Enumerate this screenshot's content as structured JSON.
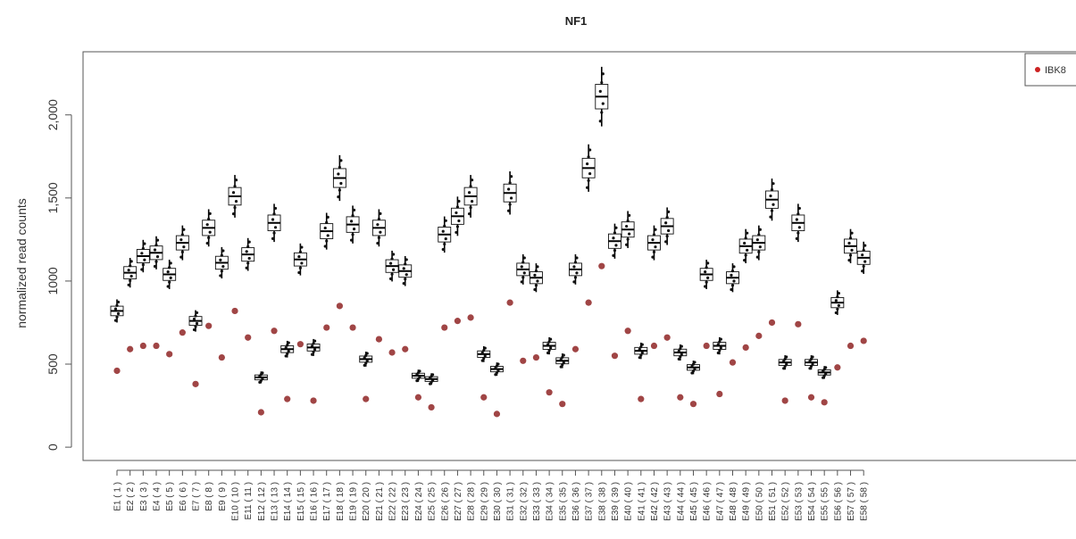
{
  "chart_data": {
    "type": "box",
    "title": "NF1",
    "xlabel": "",
    "ylabel": "normalized read counts",
    "ylim": [
      -80,
      2380
    ],
    "yticks": [
      0,
      500,
      1000,
      1500,
      2000
    ],
    "ytick_labels": [
      "0",
      "500",
      "1000",
      "1,500",
      "2,000"
    ],
    "legend": {
      "placement": "top-right",
      "entries": [
        {
          "label": "IBK8",
          "color": "#a04545"
        }
      ]
    },
    "colors": {
      "box": "#000000",
      "sample_point": "#a04545"
    },
    "categories": [
      "E1 ( 1 )",
      "E2 ( 2 )",
      "E3 ( 3 )",
      "E4 ( 4 )",
      "E5 ( 5 )",
      "E6 ( 6 )",
      "E7 ( 7 )",
      "E8 ( 8 )",
      "E9 ( 9 )",
      "E10 ( 10 )",
      "E11 ( 11 )",
      "E12 ( 12 )",
      "E13 ( 13 )",
      "E14 ( 14 )",
      "E15 ( 15 )",
      "E16 ( 16 )",
      "E17 ( 17 )",
      "E18 ( 18 )",
      "E19 ( 19 )",
      "E20 ( 20 )",
      "E21 ( 21 )",
      "E22 ( 22 )",
      "E23 ( 23 )",
      "E24 ( 24 )",
      "E25 ( 25 )",
      "E26 ( 26 )",
      "E27 ( 27 )",
      "E28 ( 28 )",
      "E29 ( 29 )",
      "E30 ( 30 )",
      "E31 ( 31 )",
      "E32 ( 32 )",
      "E33 ( 33 )",
      "E34 ( 34 )",
      "E35 ( 35 )",
      "E36 ( 36 )",
      "E37 ( 37 )",
      "E38 ( 38 )",
      "E39 ( 39 )",
      "E40 ( 40 )",
      "E41 ( 41 )",
      "E42 ( 42 )",
      "E43 ( 43 )",
      "E44 ( 44 )",
      "E45 ( 45 )",
      "E46 ( 46 )",
      "E47 ( 47 )",
      "E48 ( 48 )",
      "E49 ( 49 )",
      "E50 ( 50 )",
      "E51 ( 51 )",
      "E52 ( 52 )",
      "E53 ( 53 )",
      "E54 ( 54 )",
      "E55 ( 55 )",
      "E56 ( 56 )",
      "E57 ( 57 )",
      "E58 ( 58 )"
    ],
    "medians": [
      820,
      1050,
      1150,
      1170,
      1040,
      1230,
      760,
      1320,
      1110,
      1510,
      1160,
      420,
      1350,
      590,
      1130,
      600,
      1300,
      1620,
      1340,
      530,
      1320,
      1090,
      1060,
      430,
      410,
      1280,
      1390,
      1510,
      560,
      470,
      1530,
      1070,
      1020,
      610,
      520,
      1070,
      1680,
      2110,
      1240,
      1310,
      580,
      1230,
      1330,
      570,
      480,
      1040,
      610,
      1020,
      1210,
      1230,
      1490,
      510,
      1350,
      510,
      450,
      870,
      1210,
      1140
    ],
    "sample_values": [
      460,
      590,
      610,
      610,
      560,
      690,
      380,
      730,
      540,
      820,
      660,
      210,
      700,
      290,
      620,
      280,
      720,
      850,
      720,
      290,
      650,
      570,
      590,
      300,
      240,
      720,
      760,
      780,
      300,
      200,
      870,
      520,
      540,
      330,
      260,
      590,
      870,
      1090,
      550,
      700,
      290,
      610,
      660,
      300,
      260,
      610,
      320,
      510,
      600,
      670,
      750,
      280,
      740,
      300,
      270,
      480,
      610,
      640
    ]
  }
}
